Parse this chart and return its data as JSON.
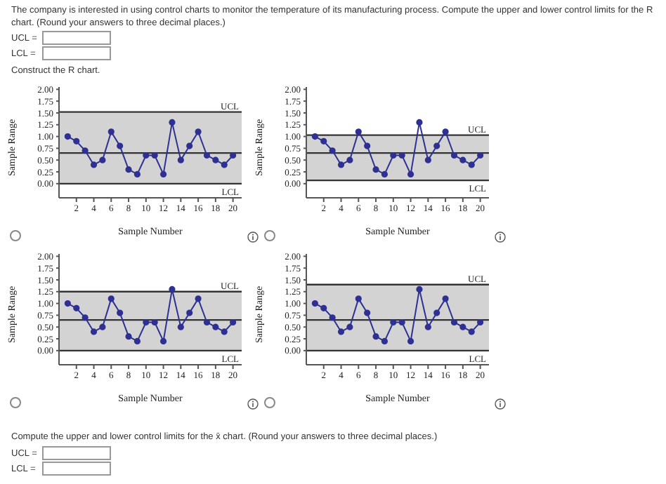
{
  "chart_data": [
    {
      "type": "line",
      "xlabel": "Sample Number",
      "ylabel": "Sample Range",
      "annotations": [
        "The company is interested in using control charts to monitor the temperature of its manufacturing process. Compute the upper and lower control limits for the R chart. (Round your answers to three decimal places.)",
        "UCL =",
        "LCL =",
        "Construct the R chart."
      ],
      "x": [
        1,
        2,
        3,
        4,
        5,
        6,
        7,
        8,
        9,
        10,
        11,
        12,
        13,
        14,
        15,
        16,
        17,
        18,
        19,
        20
      ],
      "series": [
        {
          "color": "#2e3192",
          "values": [
            1.0,
            0.9,
            0.7,
            0.4,
            0.5,
            1.1,
            0.8,
            0.3,
            0.2,
            0.6,
            0.6,
            0.2,
            1.3,
            0.5,
            0.8,
            1.1,
            0.6,
            0.5,
            0.4,
            0.6
          ]
        }
      ],
      "marker": "circle",
      "line_style": "solid",
      "xlim": [
        0,
        21
      ],
      "xticks": [
        2,
        4,
        6,
        8,
        10,
        12,
        14,
        16,
        18,
        20
      ],
      "ylim": [
        -0.3,
        2.05
      ],
      "yticks": [
        {
          "value": 0,
          "label": "0.00"
        },
        {
          "value": 0.25,
          "label": "0.25"
        },
        {
          "value": 0.5,
          "label": "0.50"
        },
        {
          "value": 0.75,
          "label": "0.75"
        },
        {
          "value": 1,
          "label": "1.00"
        },
        {
          "value": 1.25,
          "label": "1.25"
        },
        {
          "value": 1.5,
          "label": "1.50"
        },
        {
          "value": 1.75,
          "label": "1.75"
        },
        {
          "value": 2,
          "label": "2.00"
        }
      ],
      "bands": [
        {
          "axis": "y",
          "from": 0,
          "to": 1.52,
          "color": "#d3d3d3"
        }
      ],
      "ref_lines": [
        {
          "axis": "y",
          "value": 1.52,
          "label": "UCL",
          "color": "#333333"
        },
        {
          "axis": "y",
          "value": 0.65,
          "color": "#333333"
        },
        {
          "axis": "y",
          "value": 0,
          "label": "LCL",
          "color": "#333333"
        }
      ]
    },
    {
      "type": "line",
      "xlabel": "Sample Number",
      "ylabel": "Sample Range",
      "x": [
        1,
        2,
        3,
        4,
        5,
        6,
        7,
        8,
        9,
        10,
        11,
        12,
        13,
        14,
        15,
        16,
        17,
        18,
        19,
        20
      ],
      "series": [
        {
          "color": "#2e3192",
          "values": [
            1.0,
            0.9,
            0.7,
            0.4,
            0.5,
            1.1,
            0.8,
            0.3,
            0.2,
            0.6,
            0.6,
            0.2,
            1.3,
            0.5,
            0.8,
            1.1,
            0.6,
            0.5,
            0.4,
            0.6
          ]
        }
      ],
      "marker": "circle",
      "line_style": "solid",
      "xlim": [
        0,
        21
      ],
      "xticks": [
        2,
        4,
        6,
        8,
        10,
        12,
        14,
        16,
        18,
        20
      ],
      "ylim": [
        -0.3,
        2.05
      ],
      "yticks": [
        {
          "value": 0,
          "label": "0.00"
        },
        {
          "value": 0.25,
          "label": "0.25"
        },
        {
          "value": 0.5,
          "label": "0.50"
        },
        {
          "value": 0.75,
          "label": "0.75"
        },
        {
          "value": 1,
          "label": "1.00"
        },
        {
          "value": 1.25,
          "label": "1.25"
        },
        {
          "value": 1.5,
          "label": "1.50"
        },
        {
          "value": 1.75,
          "label": "1.75"
        },
        {
          "value": 2,
          "label": "2.00"
        }
      ],
      "bands": [
        {
          "axis": "y",
          "from": 0.07,
          "to": 1.03,
          "color": "#d3d3d3"
        }
      ],
      "ref_lines": [
        {
          "axis": "y",
          "value": 1.03,
          "label": "UCL",
          "color": "#333333"
        },
        {
          "axis": "y",
          "value": 0.65,
          "color": "#333333"
        },
        {
          "axis": "y",
          "value": 0.07,
          "label": "LCL",
          "color": "#333333"
        }
      ]
    },
    {
      "type": "line",
      "xlabel": "Sample Number",
      "ylabel": "Sample Range",
      "x": [
        1,
        2,
        3,
        4,
        5,
        6,
        7,
        8,
        9,
        10,
        11,
        12,
        13,
        14,
        15,
        16,
        17,
        18,
        19,
        20
      ],
      "series": [
        {
          "color": "#2e3192",
          "values": [
            1.0,
            0.9,
            0.7,
            0.4,
            0.5,
            1.1,
            0.8,
            0.3,
            0.2,
            0.6,
            0.6,
            0.2,
            1.3,
            0.5,
            0.8,
            1.1,
            0.6,
            0.5,
            0.4,
            0.6
          ]
        }
      ],
      "marker": "circle",
      "line_style": "solid",
      "xlim": [
        0,
        21
      ],
      "xticks": [
        2,
        4,
        6,
        8,
        10,
        12,
        14,
        16,
        18,
        20
      ],
      "ylim": [
        -0.3,
        2.05
      ],
      "yticks": [
        {
          "value": 0,
          "label": "0.00"
        },
        {
          "value": 0.25,
          "label": "0.25"
        },
        {
          "value": 0.5,
          "label": "0.50"
        },
        {
          "value": 0.75,
          "label": "0.75"
        },
        {
          "value": 1,
          "label": "1.00"
        },
        {
          "value": 1.25,
          "label": "1.25"
        },
        {
          "value": 1.5,
          "label": "1.50"
        },
        {
          "value": 1.75,
          "label": "1.75"
        },
        {
          "value": 2,
          "label": "2.00"
        }
      ],
      "bands": [
        {
          "axis": "y",
          "from": 0,
          "to": 1.25,
          "color": "#d3d3d3"
        }
      ],
      "ref_lines": [
        {
          "axis": "y",
          "value": 1.25,
          "label": "UCL",
          "color": "#333333"
        },
        {
          "axis": "y",
          "value": 0.65,
          "color": "#333333"
        },
        {
          "axis": "y",
          "value": 0,
          "label": "LCL",
          "color": "#333333"
        }
      ]
    },
    {
      "type": "line",
      "xlabel": "Sample Number",
      "ylabel": "Sample Range",
      "annotations": [
        "Compute the upper and lower control limits for the x̄ chart. (Round your answers to three decimal places.)",
        "UCL =",
        "LCL ="
      ],
      "x": [
        1,
        2,
        3,
        4,
        5,
        6,
        7,
        8,
        9,
        10,
        11,
        12,
        13,
        14,
        15,
        16,
        17,
        18,
        19,
        20
      ],
      "series": [
        {
          "color": "#2e3192",
          "values": [
            1.0,
            0.9,
            0.7,
            0.4,
            0.5,
            1.1,
            0.8,
            0.3,
            0.2,
            0.6,
            0.6,
            0.2,
            1.3,
            0.5,
            0.8,
            1.1,
            0.6,
            0.5,
            0.4,
            0.6
          ]
        }
      ],
      "marker": "circle",
      "line_style": "solid",
      "xlim": [
        0,
        21
      ],
      "xticks": [
        2,
        4,
        6,
        8,
        10,
        12,
        14,
        16,
        18,
        20
      ],
      "ylim": [
        -0.3,
        2.05
      ],
      "yticks": [
        {
          "value": 0,
          "label": "0.00"
        },
        {
          "value": 0.25,
          "label": "0.25"
        },
        {
          "value": 0.5,
          "label": "0.50"
        },
        {
          "value": 0.75,
          "label": "0.75"
        },
        {
          "value": 1,
          "label": "1.00"
        },
        {
          "value": 1.25,
          "label": "1.25"
        },
        {
          "value": 1.5,
          "label": "1.50"
        },
        {
          "value": 1.75,
          "label": "1.75"
        },
        {
          "value": 2,
          "label": "2.00"
        }
      ],
      "bands": [
        {
          "axis": "y",
          "from": 0,
          "to": 1.4,
          "color": "#d3d3d3"
        }
      ],
      "ref_lines": [
        {
          "axis": "y",
          "value": 1.4,
          "label": "UCL",
          "color": "#333333"
        },
        {
          "axis": "y",
          "value": 0.65,
          "color": "#333333"
        },
        {
          "axis": "y",
          "value": 0,
          "label": "LCL",
          "color": "#333333"
        }
      ]
    }
  ]
}
